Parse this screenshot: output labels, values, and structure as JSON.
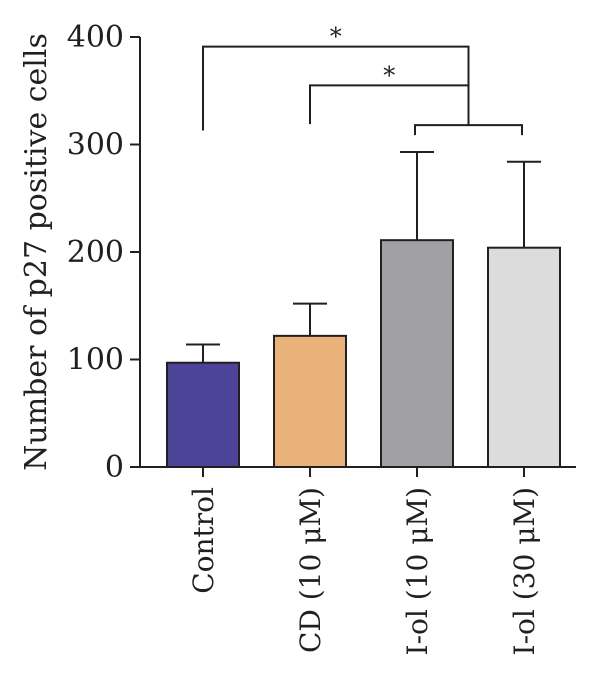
{
  "chart_data": {
    "type": "bar",
    "ylabel": "Number of p27 positive cells",
    "ylim": [
      0,
      400
    ],
    "yticks": [
      0,
      100,
      200,
      300,
      400
    ],
    "categories": [
      "Control",
      "CD (10 μM)",
      "I-ol (10 μM)",
      "I-ol (30 μM)"
    ],
    "values": [
      97,
      122,
      211,
      204
    ],
    "errors": [
      17,
      30,
      82,
      80
    ],
    "colors": [
      "#4c4497",
      "#e9b279",
      "#a0a0a5",
      "#dcdcdc"
    ],
    "significance": [
      {
        "label": "*",
        "from": 0,
        "to_group": [
          2,
          3
        ],
        "level": 391
      },
      {
        "label": "*",
        "from": 1,
        "to_group": [
          2,
          3
        ],
        "level": 355
      }
    ]
  }
}
